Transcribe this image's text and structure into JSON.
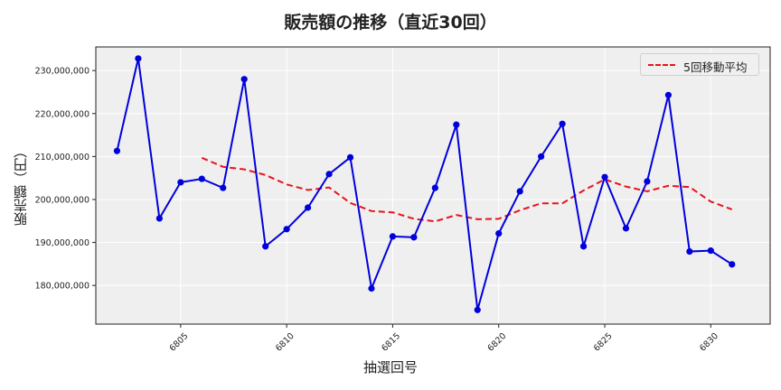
{
  "chart_data": {
    "type": "line",
    "title": "販売額の推移（直近30回）",
    "xlabel": "抽選回号",
    "ylabel": "販売額（円）",
    "x": [
      6802,
      6803,
      6804,
      6805,
      6806,
      6807,
      6808,
      6809,
      6810,
      6811,
      6812,
      6813,
      6814,
      6815,
      6816,
      6817,
      6818,
      6819,
      6820,
      6821,
      6822,
      6823,
      6824,
      6825,
      6826,
      6827,
      6828,
      6829,
      6830,
      6831
    ],
    "series": [
      {
        "name": "販売額",
        "style": "solid-line-with-markers",
        "color": "#0000dd",
        "values": [
          211300000,
          232800000,
          195600000,
          204000000,
          204800000,
          202700000,
          228000000,
          189100000,
          193100000,
          198100000,
          205900000,
          209800000,
          179300000,
          191400000,
          191200000,
          202700000,
          217400000,
          174300000,
          192100000,
          201900000,
          210000000,
          217600000,
          189100000,
          205200000,
          193300000,
          204200000,
          224300000,
          187900000,
          188100000,
          184900000
        ]
      },
      {
        "name": "5回移動平均",
        "style": "dashed",
        "color": "#e8141a",
        "values": [
          null,
          null,
          null,
          null,
          209700000,
          207600000,
          207000000,
          205700000,
          203500000,
          202200000,
          202800000,
          199200000,
          197300000,
          197000000,
          195500000,
          194900000,
          196400000,
          195400000,
          195500000,
          197500000,
          199100000,
          199100000,
          202100000,
          204700000,
          203000000,
          201900000,
          203200000,
          202900000,
          199500000,
          197700000
        ]
      }
    ],
    "ylim": [
      171000000,
      235500000
    ],
    "xlim": [
      6801,
      6832.8
    ],
    "yticks": [
      180000000,
      190000000,
      200000000,
      210000000,
      220000000,
      230000000
    ],
    "ytick_labels": [
      "180,000,000",
      "190,000,000",
      "200,000,000",
      "210,000,000",
      "220,000,000",
      "230,000,000"
    ],
    "xticks": [
      6805,
      6810,
      6815,
      6820,
      6825,
      6830
    ],
    "xtick_labels": [
      "6805",
      "6810",
      "6815",
      "6820",
      "6825",
      "6830"
    ],
    "grid": true,
    "legend": {
      "position": "upper right",
      "entries": [
        "5回移動平均"
      ]
    }
  },
  "colors": {
    "plot_bg": "#efefef",
    "grid": "#ffffff",
    "sales_line": "#0000dd",
    "moving_avg": "#e8141a"
  }
}
